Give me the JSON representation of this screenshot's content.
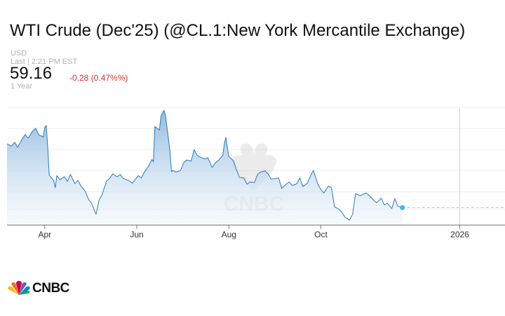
{
  "header": {
    "title": "WTI Crude (Dec'25) (@CL.1:New York Mercantile Exchange)",
    "currency": "USD",
    "last_time": "Last | 2:21 PM EST",
    "price": "59.16",
    "change": "-0.28 (0.47%%)",
    "timespan": "1 Year"
  },
  "colors": {
    "line": "#2e7ab8",
    "fill_top": "#8db8de",
    "fill_bottom": "#eef5fb",
    "change_negative": "#d8302f",
    "last_dot": "#3fb7ef",
    "gridline": "#ececec"
  },
  "chart_data": {
    "type": "area",
    "x_ticks": [
      {
        "label": "Apr",
        "date": "2025-04-01"
      },
      {
        "label": "Jun",
        "date": "2025-06-01"
      },
      {
        "label": "Aug",
        "date": "2025-08-01"
      },
      {
        "label": "Oct",
        "date": "2025-10-01"
      },
      {
        "label": "2026",
        "date": "2026-01-01"
      }
    ],
    "x_range": [
      "2025-03-07",
      "2026-01-31"
    ],
    "y_range": [
      56.2,
      76.5
    ],
    "y_axis_labels": "none",
    "grid": true,
    "legend": "none",
    "last_value": 59.16,
    "series": [
      {
        "x": [
          "2025-03-07",
          "2025-03-10",
          "2025-03-12",
          "2025-03-14",
          "2025-03-17",
          "2025-03-19",
          "2025-03-21",
          "2025-03-24",
          "2025-03-26",
          "2025-03-28",
          "2025-03-31",
          "2025-04-01",
          "2025-04-02",
          "2025-04-03",
          "2025-04-04",
          "2025-04-07",
          "2025-04-08",
          "2025-04-09",
          "2025-04-11",
          "2025-04-14",
          "2025-04-16",
          "2025-04-18",
          "2025-04-21",
          "2025-04-23",
          "2025-04-25",
          "2025-04-28",
          "2025-04-30",
          "2025-05-02",
          "2025-05-05",
          "2025-05-07",
          "2025-05-09",
          "2025-05-12",
          "2025-05-14",
          "2025-05-16",
          "2025-05-19",
          "2025-05-21",
          "2025-05-23",
          "2025-05-27",
          "2025-05-29",
          "2025-06-02",
          "2025-06-04",
          "2025-06-06",
          "2025-06-09",
          "2025-06-11",
          "2025-06-12",
          "2025-06-13",
          "2025-06-16",
          "2025-06-17",
          "2025-06-18",
          "2025-06-19",
          "2025-06-20",
          "2025-06-23",
          "2025-06-24",
          "2025-06-25",
          "2025-06-27",
          "2025-06-30",
          "2025-07-02",
          "2025-07-04",
          "2025-07-07",
          "2025-07-09",
          "2025-07-11",
          "2025-07-14",
          "2025-07-16",
          "2025-07-18",
          "2025-07-21",
          "2025-07-23",
          "2025-07-25",
          "2025-07-28",
          "2025-07-29",
          "2025-07-30",
          "2025-07-31",
          "2025-08-01",
          "2025-08-04",
          "2025-08-06",
          "2025-08-08",
          "2025-08-11",
          "2025-08-13",
          "2025-08-15",
          "2025-08-18",
          "2025-08-20",
          "2025-08-22",
          "2025-08-25",
          "2025-08-27",
          "2025-08-29",
          "2025-09-01",
          "2025-09-03",
          "2025-09-05",
          "2025-09-08",
          "2025-09-10",
          "2025-09-12",
          "2025-09-15",
          "2025-09-17",
          "2025-09-19",
          "2025-09-22",
          "2025-09-24",
          "2025-09-26",
          "2025-09-29",
          "2025-10-01",
          "2025-10-03",
          "2025-10-06",
          "2025-10-08",
          "2025-10-10",
          "2025-10-13",
          "2025-10-15",
          "2025-10-17",
          "2025-10-20",
          "2025-10-22",
          "2025-10-24",
          "2025-10-27",
          "2025-10-29",
          "2025-10-31",
          "2025-11-03",
          "2025-11-05",
          "2025-11-07",
          "2025-11-10",
          "2025-11-12",
          "2025-11-14",
          "2025-11-17",
          "2025-11-19",
          "2025-11-21",
          "2025-11-24"
        ],
        "values": [
          70.2,
          69.8,
          70.5,
          69.6,
          71.0,
          71.8,
          71.2,
          72.4,
          72.9,
          71.8,
          71.4,
          73.0,
          73.4,
          69.5,
          64.8,
          63.8,
          62.6,
          64.7,
          64.0,
          64.5,
          63.7,
          64.9,
          63.3,
          63.9,
          62.9,
          61.9,
          60.6,
          59.9,
          58.0,
          60.4,
          61.4,
          63.8,
          64.2,
          65.0,
          64.5,
          64.9,
          64.2,
          63.8,
          63.4,
          64.7,
          64.3,
          65.3,
          66.4,
          67.5,
          67.1,
          73.2,
          72.6,
          75.0,
          75.5,
          76.0,
          75.2,
          68.8,
          65.4,
          65.6,
          65.3,
          65.6,
          66.9,
          67.4,
          67.2,
          69.2,
          68.2,
          67.8,
          67.6,
          67.8,
          66.1,
          66.9,
          67.3,
          68.2,
          70.2,
          71.3,
          69.6,
          68.0,
          67.3,
          65.8,
          64.4,
          64.3,
          63.2,
          63.6,
          63.5,
          64.9,
          65.3,
          65.5,
          65.0,
          64.1,
          64.2,
          64.3,
          62.5,
          63.2,
          63.6,
          63.0,
          63.3,
          64.3,
          62.8,
          63.4,
          64.6,
          65.6,
          63.2,
          62.3,
          61.7,
          62.9,
          62.6,
          59.3,
          58.9,
          58.3,
          57.5,
          57.0,
          58.0,
          61.6,
          61.2,
          61.5,
          61.7,
          61.0,
          60.4,
          60.0,
          60.8,
          59.6,
          59.9,
          59.0,
          60.7,
          59.4,
          59.16
        ]
      }
    ]
  }
}
